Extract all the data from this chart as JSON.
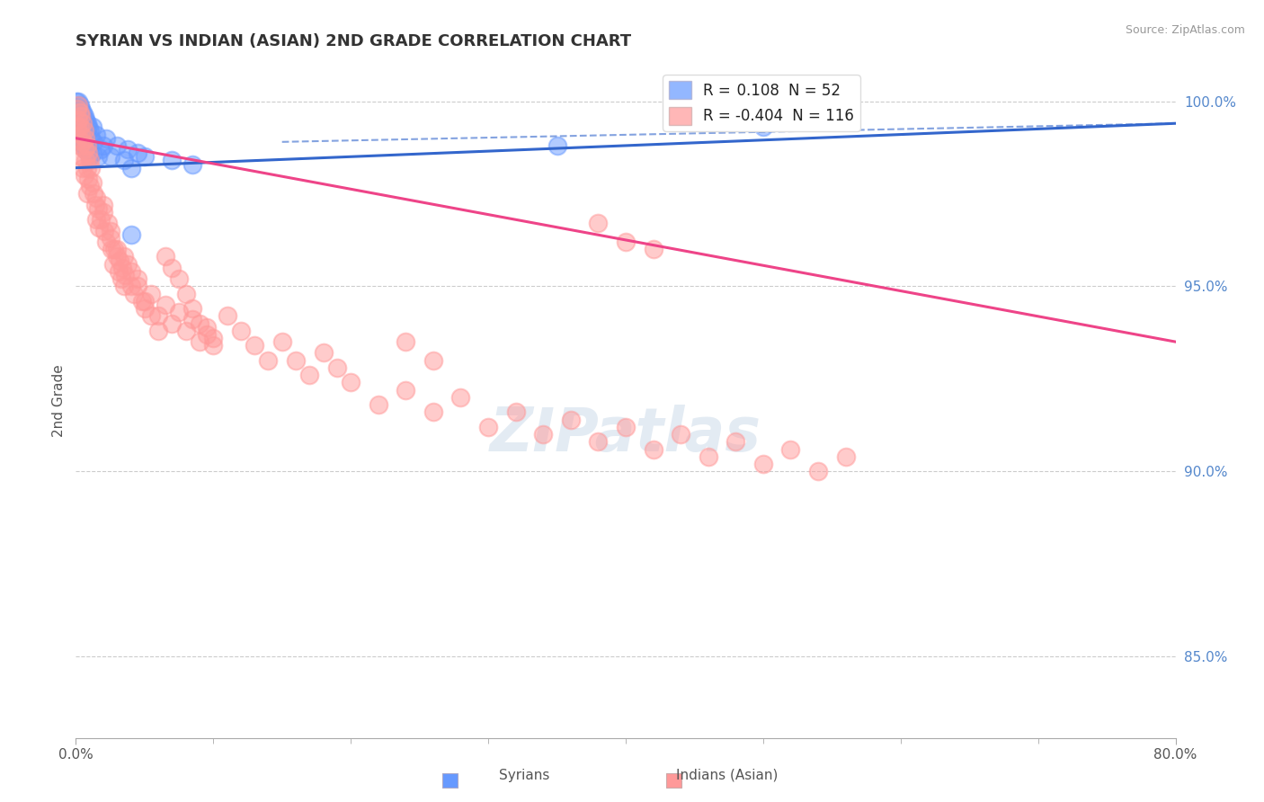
{
  "title": "SYRIAN VS INDIAN (ASIAN) 2ND GRADE CORRELATION CHART",
  "source": "Source: ZipAtlas.com",
  "ylabel": "2nd Grade",
  "xlabel_syrian": "Syrians",
  "xlabel_indian": "Indians (Asian)",
  "xmin": 0.0,
  "xmax": 0.8,
  "ymin": 0.828,
  "ymax": 1.01,
  "yticks": [
    0.85,
    0.9,
    0.95,
    1.0
  ],
  "ytick_labels": [
    "85.0%",
    "90.0%",
    "95.0%",
    "100.0%"
  ],
  "grid_color": "#cccccc",
  "blue_color": "#6699ff",
  "pink_color": "#ff9999",
  "blue_line_color": "#3366cc",
  "pink_line_color": "#ee4488",
  "R_syrian": 0.108,
  "N_syrian": 52,
  "R_indian": -0.404,
  "N_indian": 116,
  "blue_trend": [
    0.0,
    0.8,
    0.982,
    0.994
  ],
  "pink_trend": [
    0.0,
    0.8,
    0.99,
    0.935
  ],
  "syrian_x": [
    0.0005,
    0.001,
    0.001,
    0.001,
    0.002,
    0.002,
    0.002,
    0.002,
    0.003,
    0.003,
    0.003,
    0.003,
    0.004,
    0.004,
    0.004,
    0.004,
    0.005,
    0.005,
    0.005,
    0.006,
    0.006,
    0.006,
    0.007,
    0.007,
    0.007,
    0.008,
    0.008,
    0.009,
    0.009,
    0.01,
    0.01,
    0.011,
    0.012,
    0.012,
    0.013,
    0.015,
    0.016,
    0.018,
    0.02,
    0.022,
    0.025,
    0.03,
    0.035,
    0.038,
    0.04,
    0.045,
    0.05,
    0.07,
    0.085,
    0.04,
    0.35,
    0.5
  ],
  "syrian_y": [
    1.0,
    0.998,
    0.996,
    0.993,
    1.0,
    0.998,
    0.995,
    0.992,
    0.999,
    0.997,
    0.994,
    0.99,
    0.998,
    0.996,
    0.993,
    0.989,
    0.997,
    0.994,
    0.99,
    0.996,
    0.993,
    0.988,
    0.995,
    0.992,
    0.987,
    0.994,
    0.989,
    0.993,
    0.987,
    0.992,
    0.985,
    0.99,
    0.993,
    0.986,
    0.989,
    0.991,
    0.985,
    0.987,
    0.988,
    0.99,
    0.985,
    0.988,
    0.984,
    0.987,
    0.982,
    0.986,
    0.985,
    0.984,
    0.983,
    0.964,
    0.988,
    0.993
  ],
  "indian_x": [
    0.001,
    0.001,
    0.002,
    0.002,
    0.002,
    0.003,
    0.003,
    0.003,
    0.004,
    0.004,
    0.004,
    0.005,
    0.005,
    0.005,
    0.006,
    0.006,
    0.006,
    0.007,
    0.007,
    0.008,
    0.008,
    0.008,
    0.009,
    0.009,
    0.01,
    0.01,
    0.011,
    0.012,
    0.013,
    0.014,
    0.015,
    0.015,
    0.016,
    0.017,
    0.018,
    0.02,
    0.021,
    0.022,
    0.023,
    0.025,
    0.026,
    0.027,
    0.028,
    0.03,
    0.031,
    0.032,
    0.033,
    0.034,
    0.035,
    0.036,
    0.038,
    0.04,
    0.042,
    0.045,
    0.048,
    0.05,
    0.055,
    0.06,
    0.065,
    0.07,
    0.075,
    0.08,
    0.085,
    0.09,
    0.095,
    0.1,
    0.11,
    0.12,
    0.13,
    0.14,
    0.15,
    0.16,
    0.17,
    0.18,
    0.19,
    0.2,
    0.22,
    0.24,
    0.26,
    0.28,
    0.3,
    0.32,
    0.34,
    0.36,
    0.38,
    0.4,
    0.42,
    0.44,
    0.46,
    0.48,
    0.5,
    0.52,
    0.54,
    0.56,
    0.38,
    0.4,
    0.42,
    0.24,
    0.26,
    0.02,
    0.025,
    0.03,
    0.035,
    0.04,
    0.045,
    0.05,
    0.055,
    0.06,
    0.065,
    0.07,
    0.075,
    0.08,
    0.085,
    0.09,
    0.095,
    0.1
  ],
  "indian_y": [
    0.998,
    0.993,
    0.999,
    0.995,
    0.99,
    0.997,
    0.993,
    0.988,
    0.996,
    0.991,
    0.985,
    0.994,
    0.989,
    0.982,
    0.992,
    0.987,
    0.98,
    0.99,
    0.984,
    0.988,
    0.982,
    0.975,
    0.986,
    0.979,
    0.984,
    0.977,
    0.982,
    0.978,
    0.975,
    0.972,
    0.974,
    0.968,
    0.971,
    0.966,
    0.968,
    0.97,
    0.965,
    0.962,
    0.967,
    0.963,
    0.96,
    0.956,
    0.96,
    0.958,
    0.954,
    0.957,
    0.952,
    0.955,
    0.95,
    0.953,
    0.956,
    0.95,
    0.948,
    0.952,
    0.946,
    0.944,
    0.948,
    0.942,
    0.945,
    0.94,
    0.943,
    0.938,
    0.941,
    0.935,
    0.939,
    0.936,
    0.942,
    0.938,
    0.934,
    0.93,
    0.935,
    0.93,
    0.926,
    0.932,
    0.928,
    0.924,
    0.918,
    0.922,
    0.916,
    0.92,
    0.912,
    0.916,
    0.91,
    0.914,
    0.908,
    0.912,
    0.906,
    0.91,
    0.904,
    0.908,
    0.902,
    0.906,
    0.9,
    0.904,
    0.967,
    0.962,
    0.96,
    0.935,
    0.93,
    0.972,
    0.965,
    0.96,
    0.958,
    0.954,
    0.95,
    0.946,
    0.942,
    0.938,
    0.958,
    0.955,
    0.952,
    0.948,
    0.944,
    0.94,
    0.937,
    0.934
  ]
}
